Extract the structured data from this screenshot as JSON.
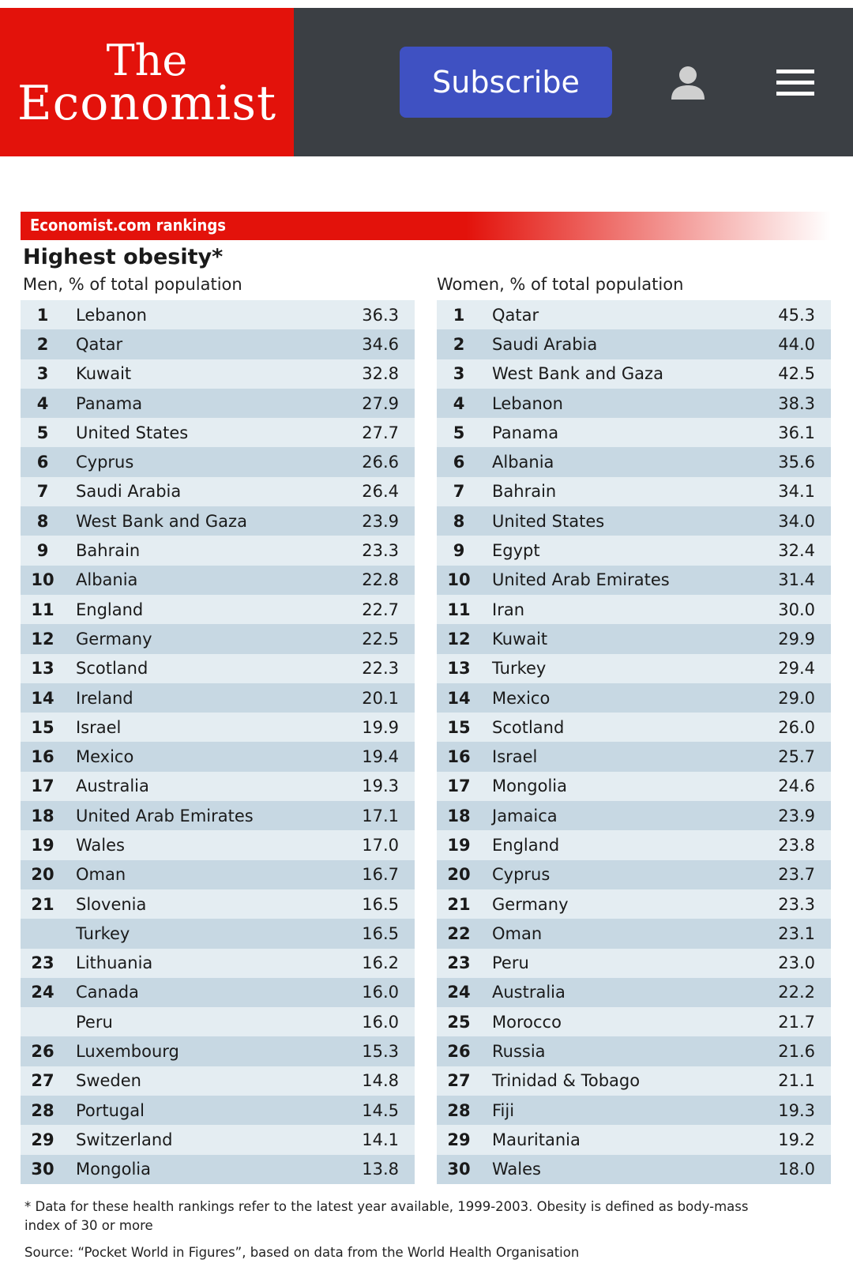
{
  "header": {
    "logo_line1": "The",
    "logo_line2": "Economist",
    "subscribe_label": "Subscribe",
    "user_icon": "user-icon",
    "menu_icon": "hamburger-menu-icon",
    "brand_color": "#e3120b",
    "subscribe_color": "#3f51c2"
  },
  "chart_data": {
    "type": "table",
    "banner": "Economist.com rankings",
    "title": "Highest obesity*",
    "tables": [
      {
        "subtitle": "Men, % of total population",
        "rows": [
          {
            "rank": "1",
            "country": "Lebanon",
            "value": "36.3"
          },
          {
            "rank": "2",
            "country": "Qatar",
            "value": "34.6"
          },
          {
            "rank": "3",
            "country": "Kuwait",
            "value": "32.8"
          },
          {
            "rank": "4",
            "country": "Panama",
            "value": "27.9"
          },
          {
            "rank": "5",
            "country": "United States",
            "value": "27.7"
          },
          {
            "rank": "6",
            "country": "Cyprus",
            "value": "26.6"
          },
          {
            "rank": "7",
            "country": "Saudi Arabia",
            "value": "26.4"
          },
          {
            "rank": "8",
            "country": "West Bank and Gaza",
            "value": "23.9"
          },
          {
            "rank": "9",
            "country": "Bahrain",
            "value": "23.3"
          },
          {
            "rank": "10",
            "country": "Albania",
            "value": "22.8"
          },
          {
            "rank": "11",
            "country": "England",
            "value": "22.7"
          },
          {
            "rank": "12",
            "country": "Germany",
            "value": "22.5"
          },
          {
            "rank": "13",
            "country": "Scotland",
            "value": "22.3"
          },
          {
            "rank": "14",
            "country": "Ireland",
            "value": "20.1"
          },
          {
            "rank": "15",
            "country": "Israel",
            "value": "19.9"
          },
          {
            "rank": "16",
            "country": "Mexico",
            "value": "19.4"
          },
          {
            "rank": "17",
            "country": "Australia",
            "value": "19.3"
          },
          {
            "rank": "18",
            "country": "United Arab Emirates",
            "value": "17.1"
          },
          {
            "rank": "19",
            "country": "Wales",
            "value": "17.0"
          },
          {
            "rank": "20",
            "country": "Oman",
            "value": "16.7"
          },
          {
            "rank": "21",
            "country": "Slovenia",
            "value": "16.5"
          },
          {
            "rank": "",
            "country": "Turkey",
            "value": "16.5"
          },
          {
            "rank": "23",
            "country": "Lithuania",
            "value": "16.2"
          },
          {
            "rank": "24",
            "country": "Canada",
            "value": "16.0"
          },
          {
            "rank": "",
            "country": "Peru",
            "value": "16.0"
          },
          {
            "rank": "26",
            "country": "Luxembourg",
            "value": "15.3"
          },
          {
            "rank": "27",
            "country": "Sweden",
            "value": "14.8"
          },
          {
            "rank": "28",
            "country": "Portugal",
            "value": "14.5"
          },
          {
            "rank": "29",
            "country": "Switzerland",
            "value": "14.1"
          },
          {
            "rank": "30",
            "country": "Mongolia",
            "value": "13.8"
          }
        ]
      },
      {
        "subtitle": "Women, % of total population",
        "rows": [
          {
            "rank": "1",
            "country": "Qatar",
            "value": "45.3"
          },
          {
            "rank": "2",
            "country": "Saudi Arabia",
            "value": "44.0"
          },
          {
            "rank": "3",
            "country": "West Bank and Gaza",
            "value": "42.5"
          },
          {
            "rank": "4",
            "country": "Lebanon",
            "value": "38.3"
          },
          {
            "rank": "5",
            "country": "Panama",
            "value": "36.1"
          },
          {
            "rank": "6",
            "country": "Albania",
            "value": "35.6"
          },
          {
            "rank": "7",
            "country": "Bahrain",
            "value": "34.1"
          },
          {
            "rank": "8",
            "country": "United States",
            "value": "34.0"
          },
          {
            "rank": "9",
            "country": "Egypt",
            "value": "32.4"
          },
          {
            "rank": "10",
            "country": "United Arab Emirates",
            "value": "31.4"
          },
          {
            "rank": "11",
            "country": "Iran",
            "value": "30.0"
          },
          {
            "rank": "12",
            "country": "Kuwait",
            "value": "29.9"
          },
          {
            "rank": "13",
            "country": "Turkey",
            "value": "29.4"
          },
          {
            "rank": "14",
            "country": "Mexico",
            "value": "29.0"
          },
          {
            "rank": "15",
            "country": "Scotland",
            "value": "26.0"
          },
          {
            "rank": "16",
            "country": "Israel",
            "value": "25.7"
          },
          {
            "rank": "17",
            "country": "Mongolia",
            "value": "24.6"
          },
          {
            "rank": "18",
            "country": "Jamaica",
            "value": "23.9"
          },
          {
            "rank": "19",
            "country": "England",
            "value": "23.8"
          },
          {
            "rank": "20",
            "country": "Cyprus",
            "value": "23.7"
          },
          {
            "rank": "21",
            "country": "Germany",
            "value": "23.3"
          },
          {
            "rank": "22",
            "country": "Oman",
            "value": "23.1"
          },
          {
            "rank": "23",
            "country": "Peru",
            "value": "23.0"
          },
          {
            "rank": "24",
            "country": "Australia",
            "value": "22.2"
          },
          {
            "rank": "25",
            "country": "Morocco",
            "value": "21.7"
          },
          {
            "rank": "26",
            "country": "Russia",
            "value": "21.6"
          },
          {
            "rank": "27",
            "country": "Trinidad & Tobago",
            "value": "21.1"
          },
          {
            "rank": "28",
            "country": "Fiji",
            "value": "19.3"
          },
          {
            "rank": "29",
            "country": "Mauritania",
            "value": "19.2"
          },
          {
            "rank": "30",
            "country": "Wales",
            "value": "18.0"
          }
        ]
      }
    ],
    "footnote": "* Data for these health rankings refer to the latest year available, 1999-2003. Obesity is defined as body-mass index of 30 or more",
    "source": "Source: “Pocket World in Figures”, based on data from the World Health Organisation"
  }
}
